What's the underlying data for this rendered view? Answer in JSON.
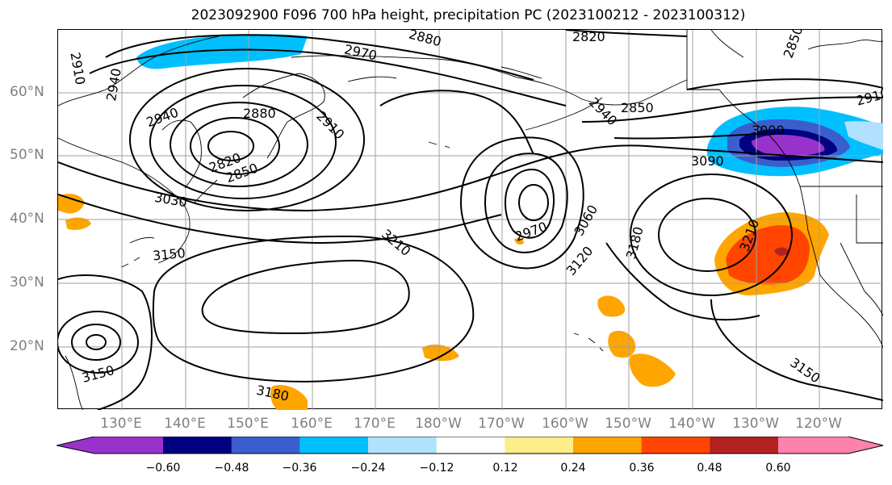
{
  "title": "2023092900 F096 700 hPa height, precipitation PC (2023100212 - 2023100312)",
  "lat_labels": [
    "60°N",
    "50°N",
    "40°N",
    "30°N",
    "20°N"
  ],
  "lon_labels": [
    "130°E",
    "140°E",
    "150°E",
    "160°E",
    "170°E",
    "180°W",
    "170°W",
    "160°W",
    "150°W",
    "140°W",
    "130°W",
    "120°W"
  ],
  "contour_labels": [
    "2910",
    "2940",
    "2940",
    "2880",
    "2910",
    "2820",
    "2850",
    "3030",
    "3150",
    "2970",
    "2820",
    "2880",
    "2850",
    "2940",
    "2850",
    "2910",
    "3000",
    "3090",
    "3060",
    "2970",
    "3120",
    "3180",
    "3210",
    "3210",
    "3150",
    "3180",
    "3150"
  ],
  "colorbar": {
    "ticks": [
      "−0.60",
      "−0.48",
      "−0.36",
      "−0.24",
      "−0.12",
      "0.12",
      "0.24",
      "0.36",
      "0.48",
      "0.60"
    ],
    "colors": [
      "#9932cc",
      "#000080",
      "#3a5fcd",
      "#00bfff",
      "#b0e2ff",
      "#ffffff",
      "#ffec8b",
      "#ffa500",
      "#ff4500",
      "#b22222",
      "#ff82ab"
    ]
  },
  "colors": {
    "contour": "#000000",
    "coastline": "#000000",
    "grid": "#a0a0a0",
    "axis_label": "#808080"
  }
}
